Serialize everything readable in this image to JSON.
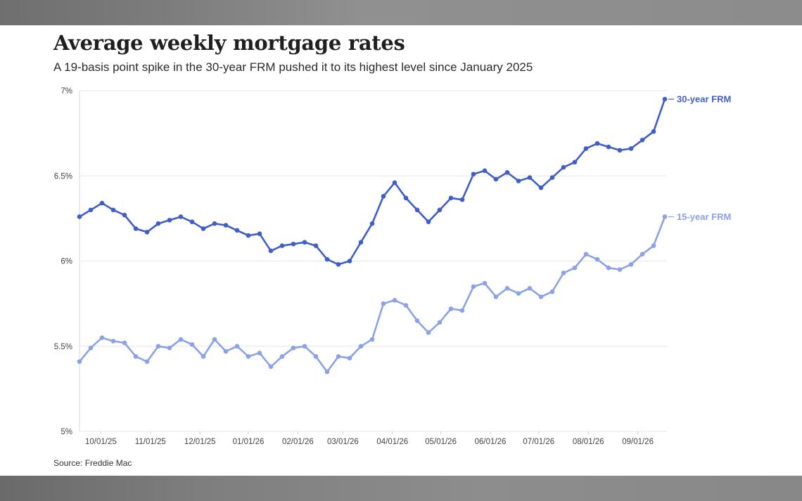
{
  "chart_data": {
    "type": "line",
    "title": "Average weekly mortgage rates",
    "subtitle": "A 19-basis point spike in the 30-year FRM pushed it to its highest level since January 2025",
    "source": "Source: Freddie Mac",
    "ylim": [
      5,
      7
    ],
    "y_ticks": [
      5,
      5.5,
      6,
      6.5,
      7
    ],
    "y_tick_labels": [
      "5%",
      "5.5%",
      "6%",
      "6.5%",
      "7%"
    ],
    "x_tick_labels": [
      "10/01/25",
      "11/01/25",
      "12/01/25",
      "01/01/26",
      "02/01/26",
      "03/01/26",
      "04/01/26",
      "05/01/26",
      "06/01/26",
      "07/01/26",
      "08/01/26",
      "09/01/26"
    ],
    "x_tick_weeks": [
      1.9,
      6.3,
      10.7,
      15.0,
      19.4,
      23.4,
      27.8,
      32.1,
      36.5,
      40.8,
      45.2,
      49.6
    ],
    "x_max_week": 52,
    "grid": true,
    "legend": "direct labels at right end of lines",
    "series": [
      {
        "name": "30-year FRM",
        "color": "#3f5ec8",
        "values": [
          6.26,
          6.3,
          6.34,
          6.3,
          6.27,
          6.19,
          6.17,
          6.22,
          6.24,
          6.26,
          6.23,
          6.19,
          6.22,
          6.21,
          6.18,
          6.15,
          6.16,
          6.06,
          6.09,
          6.1,
          6.11,
          6.09,
          6.01,
          5.98,
          6.0,
          6.11,
          6.22,
          6.38,
          6.46,
          6.37,
          6.3,
          6.23,
          6.3,
          6.37,
          6.36,
          6.51,
          6.53,
          6.48,
          6.52,
          6.47,
          6.49,
          6.43,
          6.49,
          6.55,
          6.58,
          6.66,
          6.69,
          6.67,
          6.65,
          6.66,
          6.71,
          6.76,
          6.95
        ]
      },
      {
        "name": "15-year FRM",
        "color": "#8ba2e6",
        "values": [
          5.41,
          5.49,
          5.55,
          5.53,
          5.52,
          5.44,
          5.41,
          5.5,
          5.49,
          5.54,
          5.51,
          5.44,
          5.54,
          5.47,
          5.5,
          5.44,
          5.46,
          5.38,
          5.44,
          5.49,
          5.5,
          5.44,
          5.35,
          5.44,
          5.43,
          5.5,
          5.54,
          5.75,
          5.77,
          5.74,
          5.65,
          5.58,
          5.64,
          5.72,
          5.71,
          5.85,
          5.87,
          5.79,
          5.84,
          5.81,
          5.84,
          5.79,
          5.82,
          5.93,
          5.96,
          6.04,
          6.01,
          5.96,
          5.95,
          5.98,
          6.04,
          6.09,
          6.26
        ]
      }
    ]
  }
}
